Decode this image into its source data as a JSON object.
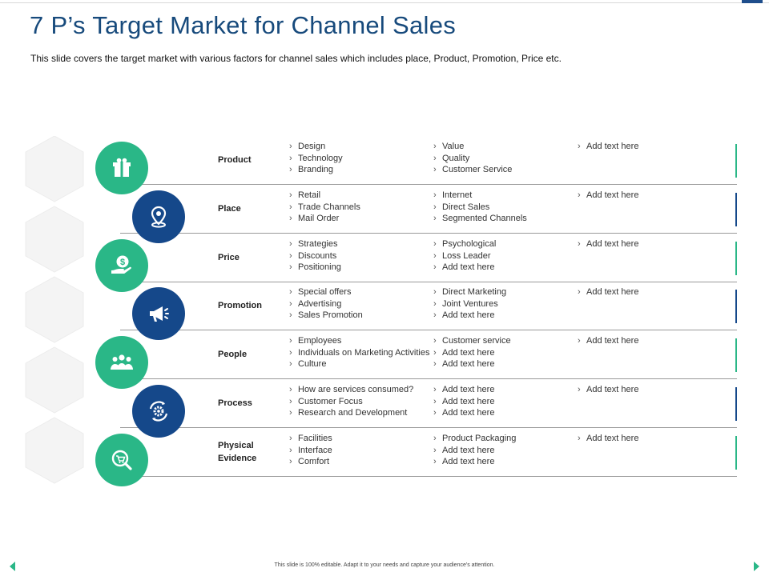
{
  "slide": {
    "title": "7 P’s Target Market for Channel Sales",
    "subtitle": "This slide covers the target market with various factors for channel sales which includes place, Product, Promotion, Price etc.",
    "footer": "This slide is 100% editable. Adapt it to your needs and capture your audience's attention."
  },
  "colors": {
    "green": "#2ab787",
    "navy": "#15488a",
    "title": "#174a7c"
  },
  "rows": [
    {
      "label": "Product",
      "icon": "gift-box-icon",
      "col1": [
        "Design",
        "Technology",
        "Branding"
      ],
      "col2": [
        "Value",
        "Quality",
        "Customer Service"
      ],
      "col3": [
        "Add text here"
      ]
    },
    {
      "label": "Place",
      "icon": "location-pin-icon",
      "col1": [
        "Retail",
        "Trade Channels",
        "Mail Order"
      ],
      "col2": [
        "Internet",
        "Direct Sales",
        "Segmented Channels"
      ],
      "col3": [
        "Add text here"
      ]
    },
    {
      "label": "Price",
      "icon": "dollar-hand-icon",
      "col1": [
        "Strategies",
        "Discounts",
        "Positioning"
      ],
      "col2": [
        "Psychological",
        "Loss Leader",
        "Add text here"
      ],
      "col3": [
        "Add text here"
      ]
    },
    {
      "label": "Promotion",
      "icon": "megaphone-icon",
      "col1": [
        "Special offers",
        "Advertising",
        "Sales Promotion"
      ],
      "col2": [
        "Direct Marketing",
        "Joint Ventures",
        "Add text here"
      ],
      "col3": [
        "Add text here"
      ]
    },
    {
      "label": "People",
      "icon": "people-group-icon",
      "col1": [
        "Employees",
        "Individuals on Marketing Activities",
        "Culture"
      ],
      "col2": [
        "Customer service",
        "Add text here",
        "Add text here"
      ],
      "col3": [
        "Add text here"
      ]
    },
    {
      "label": "Process",
      "icon": "gears-cycle-icon",
      "col1": [
        "How are services consumed?",
        "Customer Focus",
        "Research and Development"
      ],
      "col2": [
        "Add text here",
        "Add text here",
        "Add text here"
      ],
      "col3": [
        "Add text here"
      ]
    },
    {
      "label": "Physical Evidence",
      "icon": "cart-search-icon",
      "col1": [
        "Facilities",
        "Interface",
        "Comfort"
      ],
      "col2": [
        "Product Packaging",
        "Add text here",
        "Add text here"
      ],
      "col3": [
        "Add text here"
      ]
    }
  ]
}
